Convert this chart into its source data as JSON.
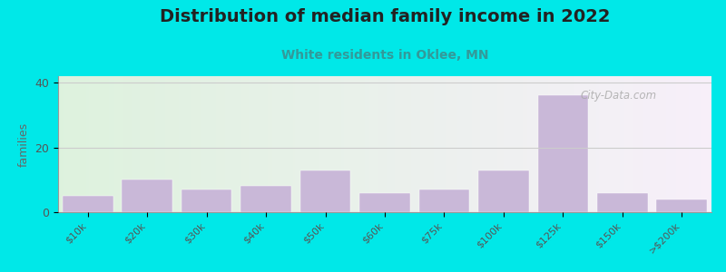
{
  "title": "Distribution of median family income in 2022",
  "subtitle": "White residents in Oklee, MN",
  "categories": [
    "$10k",
    "$20k",
    "$30k",
    "$40k",
    "$50k",
    "$60k",
    "$75k",
    "$100k",
    "$125k",
    "$150k",
    ">$200k"
  ],
  "values": [
    5,
    10,
    7,
    8,
    13,
    6,
    7,
    13,
    36,
    6,
    4
  ],
  "bar_color": "#c9b8d8",
  "bar_edge_color": "#c9b8d8",
  "background_outer": "#00e8e8",
  "background_inner_left": "#ddf0dd",
  "background_inner_right": "#f8f4fa",
  "title_fontsize": 14,
  "subtitle_fontsize": 10,
  "subtitle_color": "#339999",
  "ylabel": "families",
  "ylabel_fontsize": 9,
  "yticks": [
    0,
    20,
    40
  ],
  "ylim": [
    0,
    42
  ],
  "grid_color": "#cccccc",
  "watermark": "City-Data.com",
  "watermark_color": "#aaaaaa",
  "tick_label_color": "#555555",
  "spine_color": "#999999"
}
